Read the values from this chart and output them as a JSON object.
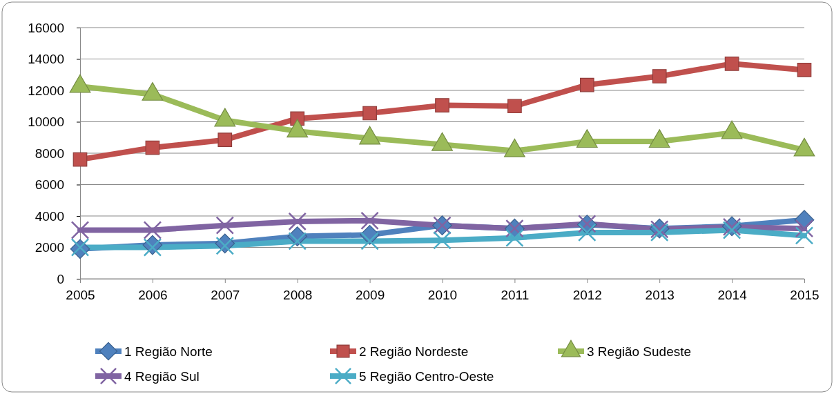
{
  "chart_data": {
    "type": "line",
    "categories": [
      "2005",
      "2006",
      "2007",
      "2008",
      "2009",
      "2010",
      "2011",
      "2012",
      "2013",
      "2014",
      "2015"
    ],
    "ylim": [
      0,
      16000
    ],
    "yticks": [
      0,
      2000,
      4000,
      6000,
      8000,
      10000,
      12000,
      14000,
      16000
    ],
    "grid": "y",
    "legend": "bottom",
    "series": [
      {
        "name": "1 Região Norte",
        "color": "#4f81bd",
        "marker": "diamond",
        "values": [
          1900,
          2150,
          2250,
          2700,
          2800,
          3400,
          3200,
          3450,
          3200,
          3350,
          3750
        ]
      },
      {
        "name": "2 Região Nordeste",
        "color": "#c0504d",
        "marker": "square",
        "values": [
          7600,
          8350,
          8850,
          10200,
          10550,
          11050,
          11000,
          12350,
          12900,
          13700,
          13300
        ]
      },
      {
        "name": "3 Região Sudeste",
        "color": "#9bbb59",
        "marker": "triangle",
        "values": [
          12250,
          11750,
          10100,
          9400,
          8950,
          8550,
          8150,
          8750,
          8750,
          9300,
          8200
        ]
      },
      {
        "name": "4 Região Sul",
        "color": "#8064a2",
        "marker": "cross",
        "values": [
          3100,
          3100,
          3400,
          3650,
          3700,
          3400,
          3200,
          3500,
          3150,
          3300,
          3200
        ]
      },
      {
        "name": "5 Região Centro-Oeste",
        "color": "#4bacc6",
        "marker": "cross",
        "values": [
          2000,
          2000,
          2100,
          2400,
          2400,
          2450,
          2600,
          2950,
          2950,
          3100,
          2750
        ]
      }
    ]
  }
}
